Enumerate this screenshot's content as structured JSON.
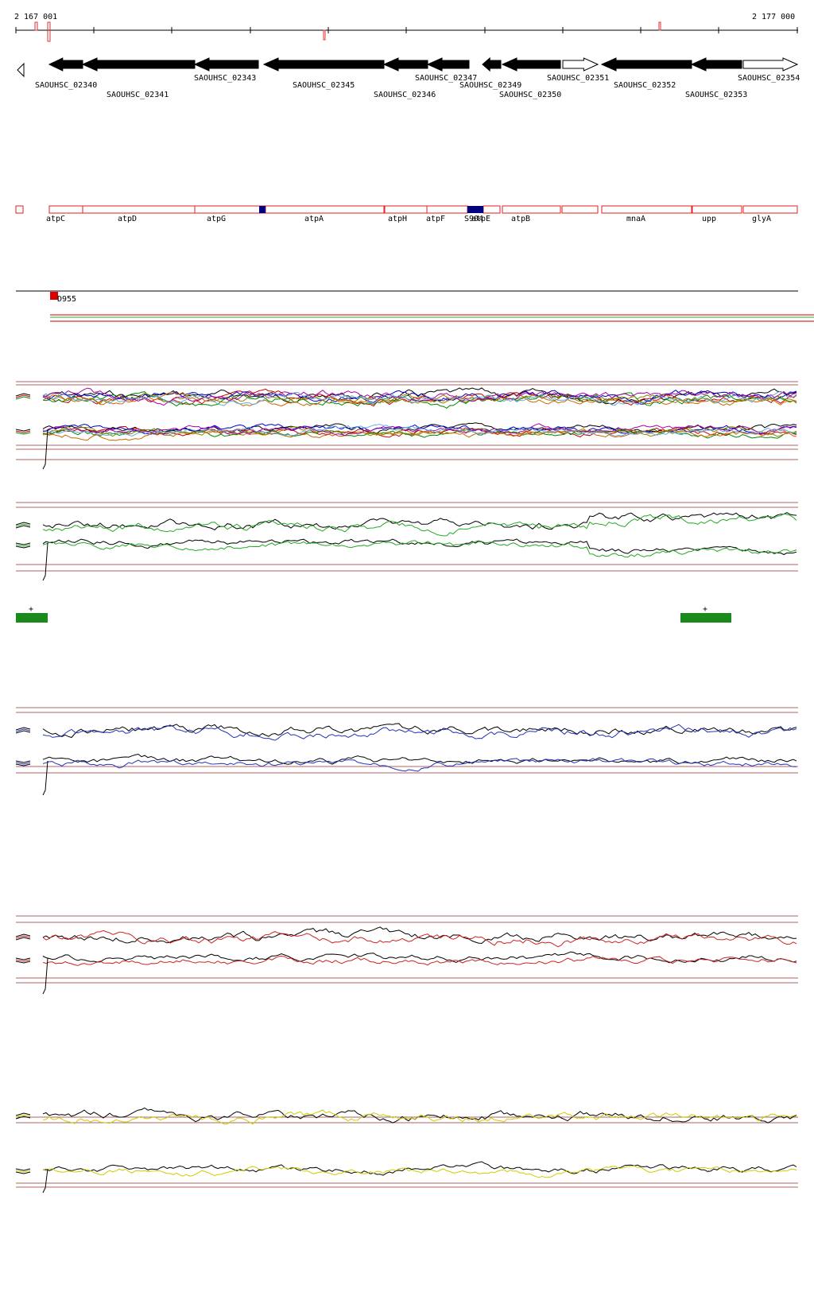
{
  "ruler": {
    "start_label": "2 167 001",
    "end_label": "2 177 000"
  },
  "genes": [
    {
      "locus": "SAOUHSC_02340",
      "symbol": "atpC",
      "strand": "-",
      "highlight": false
    },
    {
      "locus": "SAOUHSC_02341",
      "symbol": "atpD",
      "strand": "-",
      "highlight": false
    },
    {
      "locus": "SAOUHSC_02343",
      "symbol": "atpG",
      "strand": "-",
      "highlight": false
    },
    {
      "locus": "SAOUHSC_02345",
      "symbol": "atpA",
      "strand": "-",
      "highlight": false
    },
    {
      "locus": "SAOUHSC_02346",
      "symbol": "atpH",
      "strand": "-",
      "highlight": false
    },
    {
      "locus": "SAOUHSC_02347",
      "symbol": "atpF",
      "strand": "-",
      "highlight": false
    },
    {
      "locus": "SAOUHSC_02349",
      "symbol": "atpE",
      "strand": "-",
      "highlight": false
    },
    {
      "locus": "SAOUHSC_02350",
      "symbol": "atpB",
      "strand": "-",
      "highlight": false
    },
    {
      "locus": "SAOUHSC_02351",
      "symbol": "",
      "strand": "+",
      "highlight": false
    },
    {
      "locus": "SAOUHSC_02352",
      "symbol": "mnaA",
      "strand": "-",
      "highlight": false
    },
    {
      "locus": "SAOUHSC_02353",
      "symbol": "upp",
      "strand": "-",
      "highlight": false
    },
    {
      "locus": "SAOUHSC_02354",
      "symbol": "glyA",
      "strand": "+",
      "highlight": false
    }
  ],
  "features": {
    "small_rna_label": "S904",
    "region_label": "D955",
    "promoter_marks": [
      "+",
      "+"
    ]
  },
  "colors": {
    "gene_fill": "#000000",
    "gene_box": "#dd2222",
    "highlight_box": "#000080",
    "region_red": "#dd0000",
    "track1_lines": [
      "#000000",
      "#cc0000",
      "#008800",
      "#0000cc",
      "#888800",
      "#cc6600",
      "#aa00aa",
      "#66aadd"
    ],
    "track2_line": "#22aa22",
    "track3_line": "#2233bb",
    "track4_line": "#cc2222",
    "track5_line": "#cccc00",
    "guide_line": "#993333"
  },
  "tracks": [
    {
      "id": "multi-condition-expression"
    },
    {
      "id": "green-condition-expression"
    },
    {
      "id": "blue-condition-expression"
    },
    {
      "id": "red-condition-expression"
    },
    {
      "id": "yellow-condition-expression"
    }
  ]
}
